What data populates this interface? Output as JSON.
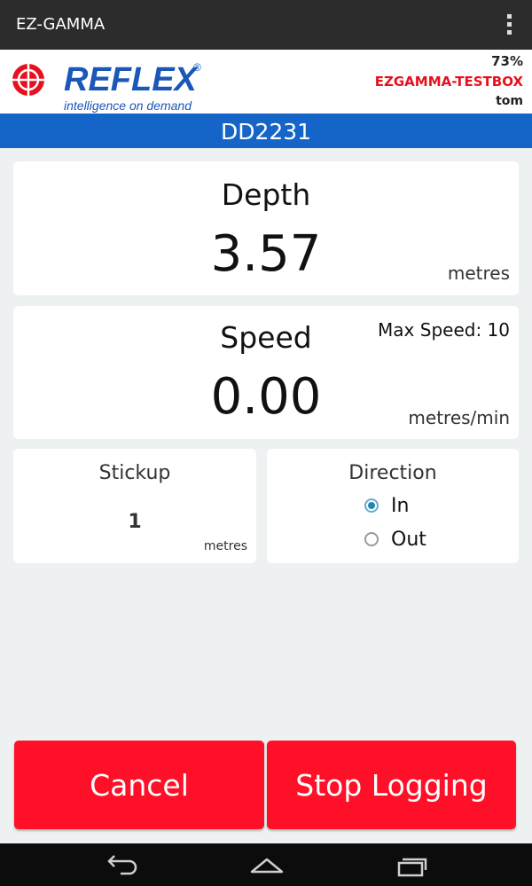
{
  "appbar": {
    "title": "EZ-GAMMA",
    "menu_icon": "overflow-menu-icon"
  },
  "header": {
    "logo_text": "REFLEX",
    "logo_registered": "®",
    "logo_tagline": "intelligence on demand",
    "battery": "73%",
    "device": "EZGAMMA-TESTBOX",
    "user": "tom"
  },
  "hole_id": "DD2231",
  "depth": {
    "label": "Depth",
    "value": "3.57",
    "unit": "metres"
  },
  "speed": {
    "label": "Speed",
    "value": "0.00",
    "unit": "metres/min",
    "max_speed": "Max Speed: 10"
  },
  "stickup": {
    "label": "Stickup",
    "value": "1",
    "unit": "metres"
  },
  "direction": {
    "label": "Direction",
    "options": [
      {
        "label": "In",
        "selected": true
      },
      {
        "label": "Out",
        "selected": false
      }
    ]
  },
  "buttons": {
    "cancel": "Cancel",
    "stop": "Stop Logging"
  },
  "navbar": {
    "icons": [
      "back-icon",
      "home-icon",
      "recent-apps-icon"
    ]
  },
  "colors": {
    "accent_blue": "#1565c8",
    "alert_red": "#ff1028",
    "device_red": "#e8101e"
  }
}
